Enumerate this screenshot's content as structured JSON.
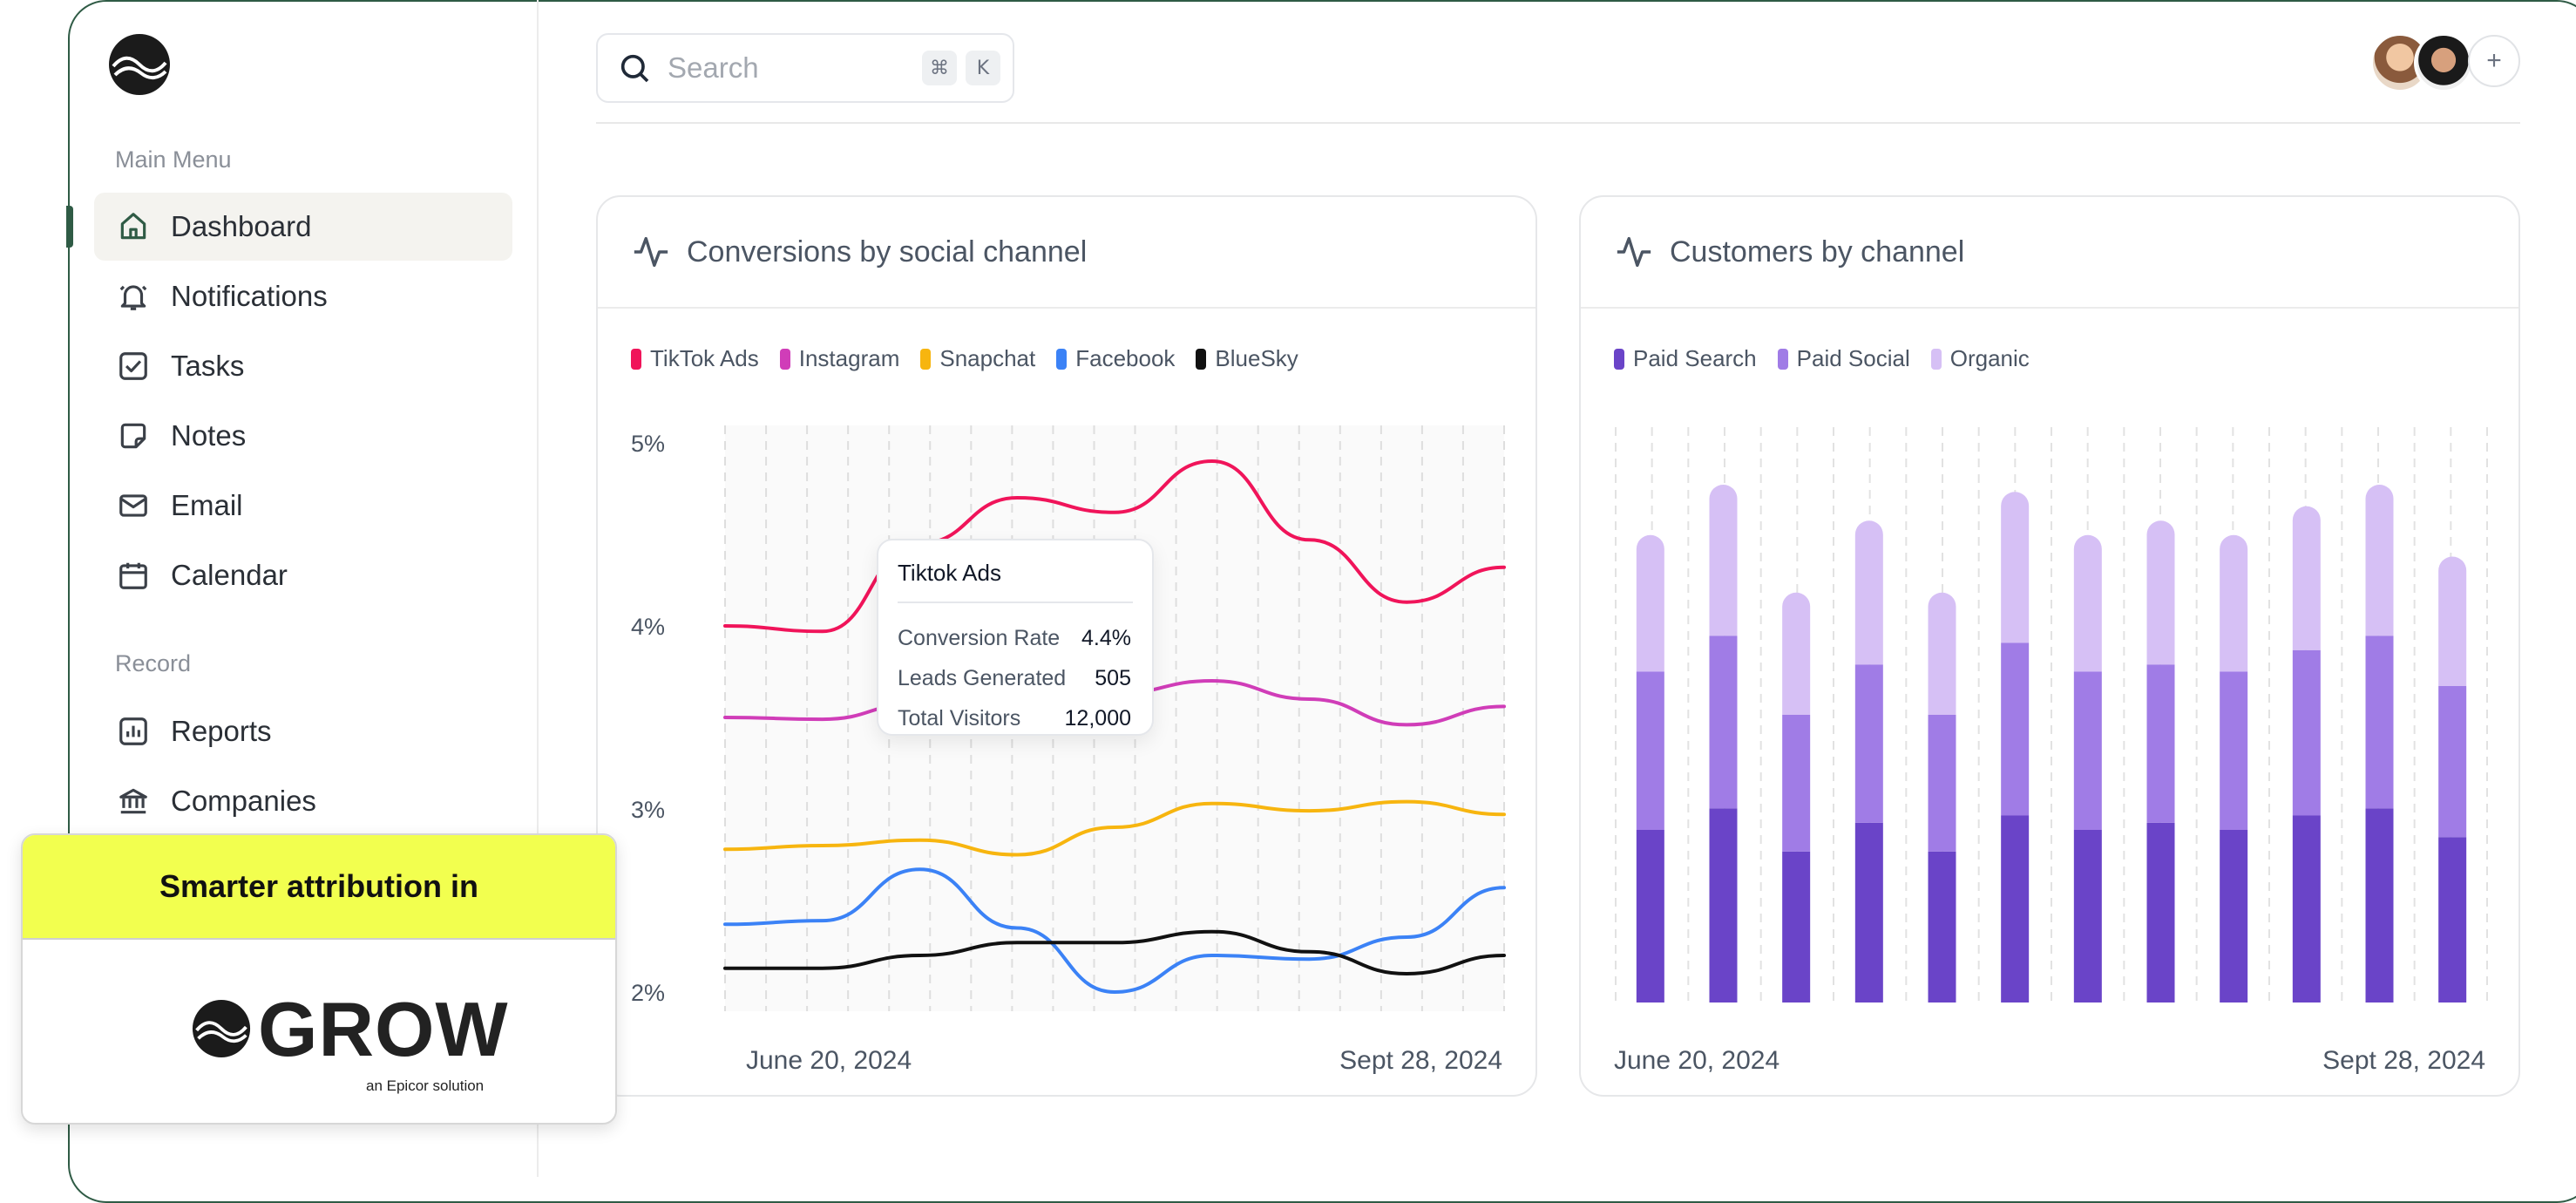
{
  "sidebar": {
    "main_menu_label": "Main Menu",
    "items": [
      {
        "label": "Dashboard",
        "icon": "home-icon",
        "active": true
      },
      {
        "label": "Notifications",
        "icon": "bell-icon"
      },
      {
        "label": "Tasks",
        "icon": "checkbox-icon"
      },
      {
        "label": "Notes",
        "icon": "note-icon"
      },
      {
        "label": "Email",
        "icon": "mail-icon"
      },
      {
        "label": "Calendar",
        "icon": "calendar-icon"
      }
    ],
    "record_label": "Record",
    "record_items": [
      {
        "label": "Reports",
        "icon": "bar-chart-icon"
      },
      {
        "label": "Companies",
        "icon": "bank-icon"
      }
    ],
    "accent_color": "#2f5b45"
  },
  "search": {
    "placeholder": "Search",
    "shortcut_keys": [
      "⌘",
      "K"
    ]
  },
  "header": {
    "add_label": "+"
  },
  "cards": {
    "conversions": {
      "title": "Conversions by social channel",
      "icon": "activity-icon",
      "start_date": "June 20, 2024",
      "end_date": "Sept 28, 2024"
    },
    "customers": {
      "title": "Customers by channel",
      "icon": "activity-icon",
      "start_date": "June 20, 2024",
      "end_date": "Sept 28, 2024"
    }
  },
  "tooltip": {
    "title": "Tiktok Ads",
    "rows": [
      {
        "label": "Conversion Rate",
        "value": "4.4%"
      },
      {
        "label": "Leads Generated",
        "value": "505"
      },
      {
        "label": "Total Visitors",
        "value": "12,000"
      }
    ]
  },
  "promo": {
    "headline": "Smarter attribution in",
    "brand": "GROW",
    "tagline": "an Epicor solution"
  },
  "chart_data": [
    {
      "type": "line",
      "title": "Conversions by social channel",
      "xlabel": "",
      "ylabel": "",
      "x_start": "June 20, 2024",
      "x_end": "Sept 28, 2024",
      "y_ticks": [
        "5%",
        "4%",
        "3%",
        "2%"
      ],
      "ylim": [
        2,
        5
      ],
      "grid": "vertical dashed",
      "legend_position": "top-left",
      "series": [
        {
          "name": "TikTok Ads",
          "color": "#f0145a",
          "values": [
            4.0,
            3.97,
            4.45,
            4.7,
            4.62,
            4.9,
            4.47,
            4.13,
            4.32
          ]
        },
        {
          "name": "Instagram",
          "color": "#d03db8",
          "values": [
            3.5,
            3.49,
            3.58,
            3.62,
            3.63,
            3.7,
            3.6,
            3.46,
            3.56
          ]
        },
        {
          "name": "Snapchat",
          "color": "#f7b50f",
          "values": [
            2.78,
            2.8,
            2.83,
            2.75,
            2.9,
            3.03,
            2.99,
            3.04,
            2.97
          ]
        },
        {
          "name": "Facebook",
          "color": "#3b82f6",
          "values": [
            2.37,
            2.39,
            2.67,
            2.35,
            2.0,
            2.2,
            2.18,
            2.3,
            2.57
          ]
        },
        {
          "name": "BlueSky",
          "color": "#111111",
          "values": [
            2.13,
            2.13,
            2.2,
            2.27,
            2.27,
            2.33,
            2.22,
            2.1,
            2.2
          ]
        }
      ]
    },
    {
      "type": "bar",
      "title": "Customers by channel",
      "stacked": true,
      "grid": "vertical dashed",
      "legend_position": "top-left",
      "x_start": "June 20, 2024",
      "x_end": "Sept 28, 2024",
      "series": [
        {
          "name": "Paid Search",
          "color": "#6a44c8",
          "values": [
            24,
            27,
            21,
            25,
            21,
            26,
            24,
            25,
            24,
            26,
            27,
            23
          ]
        },
        {
          "name": "Paid Social",
          "color": "#a07ce6",
          "values": [
            22,
            24,
            19,
            22,
            19,
            24,
            22,
            22,
            22,
            23,
            24,
            21
          ]
        },
        {
          "name": "Organic",
          "color": "#d6c0f5",
          "values": [
            19,
            21,
            17,
            20,
            17,
            21,
            19,
            20,
            19,
            20,
            21,
            18
          ]
        }
      ]
    }
  ]
}
